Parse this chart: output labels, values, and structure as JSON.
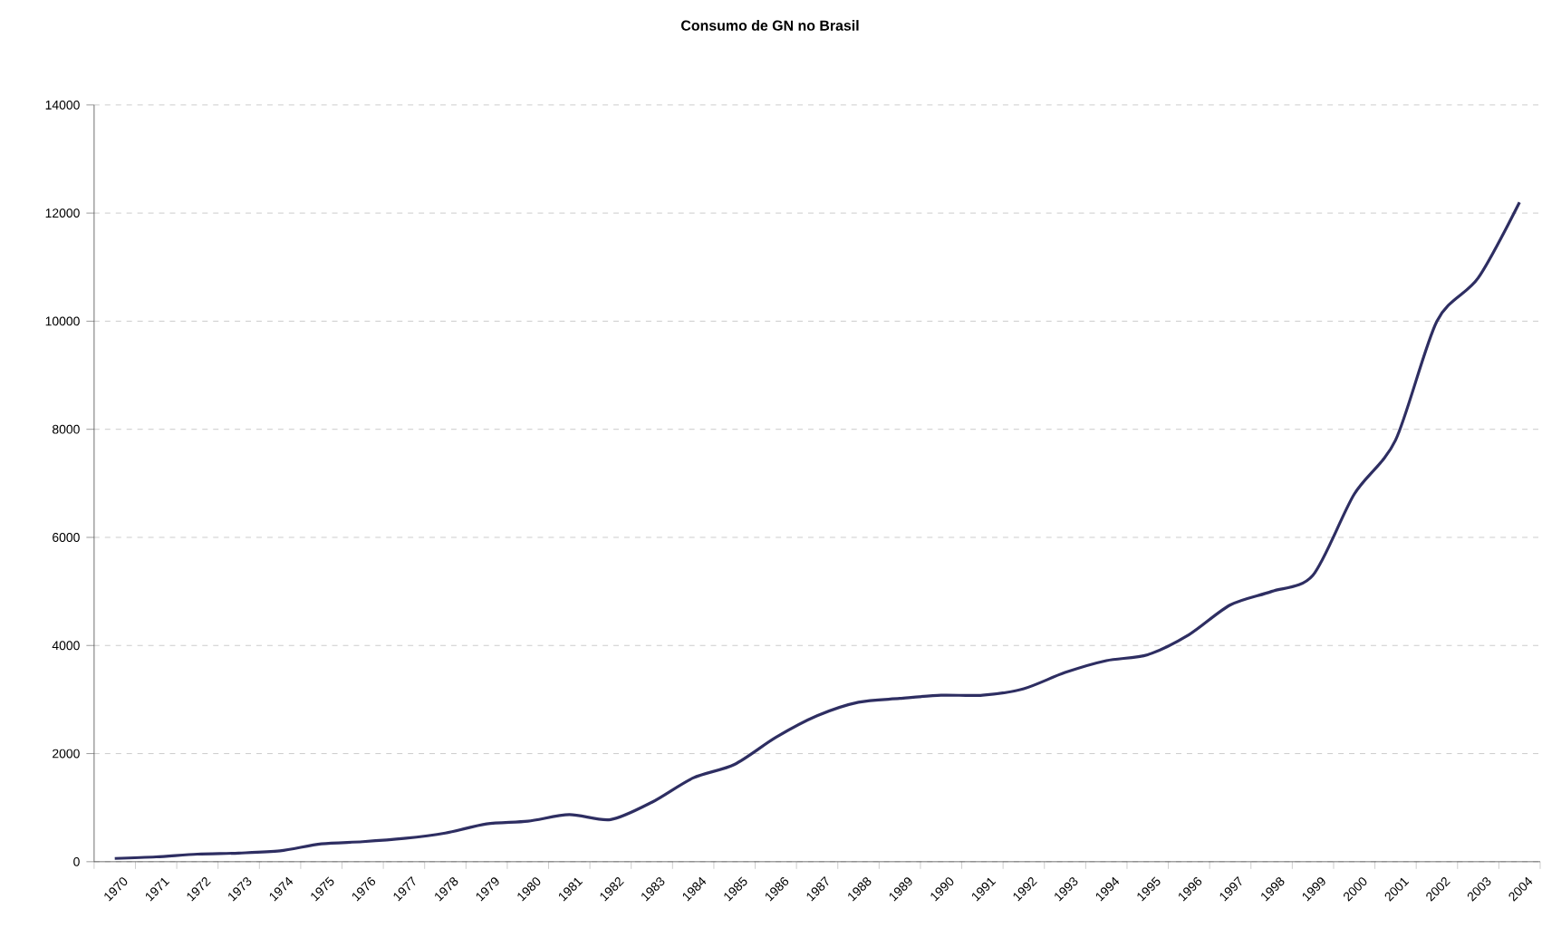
{
  "chart_data": {
    "type": "line",
    "title": "Consumo de GN no Brasil",
    "categories": [
      "1970",
      "1971",
      "1972",
      "1973",
      "1974",
      "1975",
      "1976",
      "1977",
      "1978",
      "1979",
      "1980",
      "1981",
      "1982",
      "1983",
      "1984",
      "1985",
      "1986",
      "1987",
      "1988",
      "1989",
      "1990",
      "1991",
      "1992",
      "1993",
      "1994",
      "1995",
      "1996",
      "1997",
      "1998",
      "1999",
      "2000",
      "2001",
      "2002",
      "2003",
      "2004"
    ],
    "series": [
      {
        "color": "#2e2e62",
        "values": [
          60,
          90,
          140,
          160,
          200,
          330,
          370,
          430,
          530,
          700,
          750,
          870,
          780,
          1100,
          1550,
          1800,
          2300,
          2700,
          2950,
          3020,
          3080,
          3080,
          3200,
          3500,
          3720,
          3830,
          4200,
          4750,
          5000,
          5300,
          6800,
          7800,
          10000,
          10800,
          12200
        ]
      }
    ],
    "ylim": [
      0,
      14000
    ],
    "yticks": [
      0,
      2000,
      4000,
      6000,
      8000,
      10000,
      12000,
      14000
    ],
    "grid": "y"
  }
}
